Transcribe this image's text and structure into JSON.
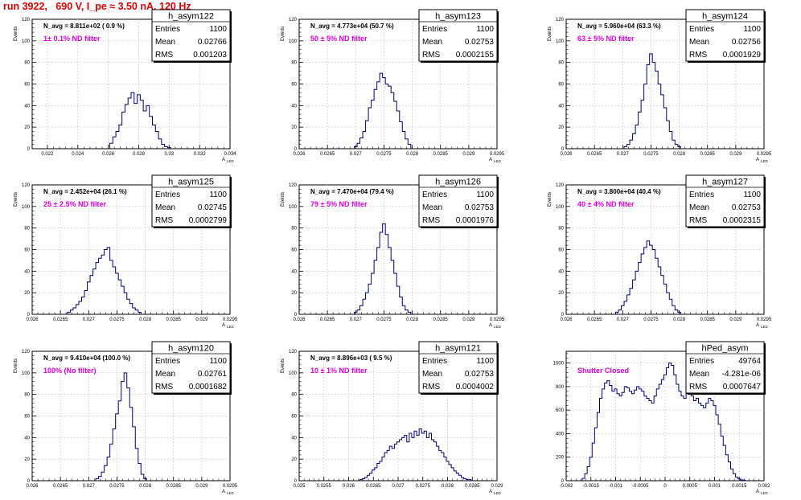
{
  "header": {
    "title": "run 3922,   690 V, I_pe ≈ 3.50 nA, 120 Hz"
  },
  "colors": {
    "title": "#e00000",
    "histogram": "#000080",
    "filter_text": "#e000e0",
    "grid": "#c8c8c8"
  },
  "chart_data": [
    {
      "type": "histogram",
      "name": "h_asym122",
      "stats": {
        "Entries": "1100",
        "Mean": "0.02766",
        "RMS": "0.001203"
      },
      "navg": "N_avg = 8.811e+02  ( 0.9 %)",
      "filter": "1± 0.1% ND filter",
      "ylabel": "Events",
      "xlabel": "A",
      "xlabel_sub": "LED",
      "xlim": [
        0.021,
        0.034
      ],
      "ylim": [
        0,
        120
      ],
      "xticks": [
        0.022,
        0.024,
        0.026,
        0.028,
        0.03,
        0.032,
        0.034
      ],
      "xtick_labels": [
        "0.022",
        "0.024",
        "0.026",
        "0.028",
        "0.03",
        "0.032",
        "0.034"
      ],
      "yticks": [
        0,
        20,
        40,
        60,
        80,
        100,
        120
      ],
      "ytick_labels": [
        "0",
        "20",
        "40",
        "60",
        "80",
        "100",
        "120"
      ],
      "x": [
        0.0262,
        0.0264,
        0.0266,
        0.0268,
        0.027,
        0.0272,
        0.0274,
        0.0276,
        0.0278,
        0.028,
        0.0282,
        0.0284,
        0.0286,
        0.0288,
        0.029,
        0.0292,
        0.0294,
        0.0296,
        0.0298,
        0.03
      ],
      "values": [
        5,
        11,
        16,
        22,
        34,
        41,
        47,
        52,
        42,
        50,
        45,
        35,
        40,
        30,
        22,
        16,
        9,
        4,
        2,
        1
      ]
    },
    {
      "type": "histogram",
      "name": "h_asym123",
      "stats": {
        "Entries": "1100",
        "Mean": "0.02753",
        "RMS": "0.0002155"
      },
      "navg": "N_avg = 4.773e+04 (50.7 %)",
      "filter": "50 ± 5% ND filter",
      "ylabel": "Events",
      "xlabel": "A",
      "xlabel_sub": "LED",
      "xlim": [
        0.026,
        0.0295
      ],
      "ylim": [
        0,
        120
      ],
      "xticks": [
        0.026,
        0.0265,
        0.027,
        0.0275,
        0.028,
        0.0285,
        0.029,
        0.0295
      ],
      "xtick_labels": [
        "0.026",
        "0.0265",
        "0.027",
        "0.0275",
        "0.028",
        "0.0285",
        "0.029",
        "0.0295"
      ],
      "yticks": [
        0,
        20,
        40,
        60,
        80,
        100,
        120
      ],
      "ytick_labels": [
        "0",
        "20",
        "40",
        "60",
        "80",
        "100",
        "120"
      ],
      "x": [
        0.027,
        0.02705,
        0.0271,
        0.02715,
        0.0272,
        0.02725,
        0.0273,
        0.02735,
        0.0274,
        0.02745,
        0.0275,
        0.02755,
        0.0276,
        0.02765,
        0.0277,
        0.02775,
        0.0278,
        0.02785,
        0.0279,
        0.02795
      ],
      "values": [
        2,
        5,
        10,
        16,
        26,
        38,
        45,
        55,
        62,
        70,
        66,
        60,
        58,
        52,
        44,
        35,
        25,
        16,
        9,
        4
      ]
    },
    {
      "type": "histogram",
      "name": "h_asym124",
      "stats": {
        "Entries": "1100",
        "Mean": "0.02756",
        "RMS": "0.0001929"
      },
      "navg": "N_avg = 5.960e+04 (63.3 %)",
      "filter": "63 ± 5% ND filter",
      "ylabel": "Events",
      "xlabel": "A",
      "xlabel_sub": "LED",
      "xlim": [
        0.026,
        0.0295
      ],
      "ylim": [
        0,
        120
      ],
      "xticks": [
        0.026,
        0.0265,
        0.027,
        0.0275,
        0.028,
        0.0285,
        0.029,
        0.0295
      ],
      "xtick_labels": [
        "0.026",
        "0.0265",
        "0.027",
        "0.0275",
        "0.028",
        "0.0285",
        "0.029",
        "0.0295"
      ],
      "yticks": [
        0,
        20,
        40,
        60,
        80,
        100,
        120
      ],
      "ytick_labels": [
        "0",
        "20",
        "40",
        "60",
        "80",
        "100",
        "120"
      ],
      "x": [
        0.02705,
        0.0271,
        0.02715,
        0.0272,
        0.02725,
        0.0273,
        0.02735,
        0.0274,
        0.02745,
        0.0275,
        0.02755,
        0.0276,
        0.02765,
        0.0277,
        0.02775,
        0.0278,
        0.02785,
        0.0279,
        0.02795,
        0.028
      ],
      "values": [
        2,
        4,
        8,
        14,
        22,
        34,
        45,
        60,
        78,
        88,
        80,
        72,
        60,
        50,
        38,
        26,
        16,
        8,
        4,
        2
      ]
    },
    {
      "type": "histogram",
      "name": "h_asym125",
      "stats": {
        "Entries": "1100",
        "Mean": "0.02745",
        "RMS": "0.0002799"
      },
      "navg": "N_avg = 2.452e+04 (26.1 %)",
      "filter": "25 ± 2.5% ND filter",
      "ylabel": "Events",
      "xlabel": "A",
      "xlabel_sub": "LED",
      "xlim": [
        0.026,
        0.0295
      ],
      "ylim": [
        0,
        120
      ],
      "xticks": [
        0.026,
        0.0265,
        0.027,
        0.0275,
        0.028,
        0.0285,
        0.029,
        0.0295
      ],
      "xtick_labels": [
        "0.026",
        "0.0265",
        "0.027",
        "0.0275",
        "0.028",
        "0.0285",
        "0.029",
        "0.0295"
      ],
      "yticks": [
        0,
        20,
        40,
        60,
        80,
        100,
        120
      ],
      "ytick_labels": [
        "0",
        "20",
        "40",
        "60",
        "80",
        "100",
        "120"
      ],
      "x": [
        0.02665,
        0.0267,
        0.02675,
        0.0268,
        0.02685,
        0.0269,
        0.02695,
        0.027,
        0.02705,
        0.0271,
        0.02715,
        0.0272,
        0.02725,
        0.0273,
        0.02735,
        0.0274,
        0.02745,
        0.0275,
        0.02755,
        0.0276,
        0.02765,
        0.0277,
        0.02775,
        0.0278,
        0.02785,
        0.0279
      ],
      "values": [
        2,
        4,
        6,
        9,
        12,
        16,
        22,
        30,
        36,
        42,
        48,
        52,
        55,
        60,
        62,
        50,
        44,
        38,
        32,
        26,
        20,
        14,
        10,
        6,
        4,
        2
      ]
    },
    {
      "type": "histogram",
      "name": "h_asym126",
      "stats": {
        "Entries": "1100",
        "Mean": "0.02753",
        "RMS": "0.0001976"
      },
      "navg": "N_avg = 7.470e+04 (79.4 %)",
      "filter": "79 ± 5% ND filter",
      "ylabel": "Events",
      "xlabel": "A",
      "xlabel_sub": "LED",
      "xlim": [
        0.026,
        0.0295
      ],
      "ylim": [
        0,
        120
      ],
      "xticks": [
        0.026,
        0.0265,
        0.027,
        0.0275,
        0.028,
        0.0285,
        0.029,
        0.0295
      ],
      "xtick_labels": [
        "0.026",
        "0.0265",
        "0.027",
        "0.0275",
        "0.028",
        "0.0285",
        "0.029",
        "0.0295"
      ],
      "yticks": [
        0,
        20,
        40,
        60,
        80,
        100,
        120
      ],
      "ytick_labels": [
        "0",
        "20",
        "40",
        "60",
        "80",
        "100",
        "120"
      ],
      "x": [
        0.027,
        0.02705,
        0.0271,
        0.02715,
        0.0272,
        0.02725,
        0.0273,
        0.02735,
        0.0274,
        0.02745,
        0.0275,
        0.02755,
        0.0276,
        0.02765,
        0.0277,
        0.02775,
        0.0278,
        0.02785,
        0.0279,
        0.02795
      ],
      "values": [
        2,
        4,
        8,
        14,
        20,
        28,
        38,
        50,
        62,
        76,
        84,
        74,
        62,
        50,
        38,
        26,
        16,
        8,
        4,
        2
      ]
    },
    {
      "type": "histogram",
      "name": "h_asym127",
      "stats": {
        "Entries": "1100",
        "Mean": "0.02753",
        "RMS": "0.0002315"
      },
      "navg": "N_avg = 3.800e+04 (40.4 %)",
      "filter": "40 ± 4% ND filter",
      "ylabel": "Events",
      "xlabel": "A",
      "xlabel_sub": "LED",
      "xlim": [
        0.026,
        0.0295
      ],
      "ylim": [
        0,
        120
      ],
      "xticks": [
        0.026,
        0.0265,
        0.027,
        0.0275,
        0.028,
        0.0285,
        0.029,
        0.0295
      ],
      "xtick_labels": [
        "0.026",
        "0.0265",
        "0.027",
        "0.0275",
        "0.028",
        "0.0285",
        "0.029",
        "0.0295"
      ],
      "yticks": [
        0,
        20,
        40,
        60,
        80,
        100,
        120
      ],
      "ytick_labels": [
        "0",
        "20",
        "40",
        "60",
        "80",
        "100",
        "120"
      ],
      "x": [
        0.0269,
        0.02695,
        0.027,
        0.02705,
        0.0271,
        0.02715,
        0.0272,
        0.02725,
        0.0273,
        0.02735,
        0.0274,
        0.02745,
        0.0275,
        0.02755,
        0.0276,
        0.02765,
        0.0277,
        0.02775,
        0.0278,
        0.02785,
        0.0279,
        0.02795,
        0.028
      ],
      "values": [
        2,
        4,
        8,
        12,
        18,
        24,
        32,
        40,
        48,
        56,
        62,
        68,
        64,
        60,
        52,
        44,
        36,
        28,
        20,
        14,
        8,
        4,
        2
      ]
    },
    {
      "type": "histogram",
      "name": "h_asym120",
      "stats": {
        "Entries": "1100",
        "Mean": "0.02761",
        "RMS": "0.0001682"
      },
      "navg": "N_avg = 9.410e+04 (100.0 %)",
      "filter": "100% (No filter)",
      "ylabel": "Events",
      "xlabel": "A",
      "xlabel_sub": "LED",
      "xlim": [
        0.026,
        0.0295
      ],
      "ylim": [
        0,
        120
      ],
      "xticks": [
        0.026,
        0.0265,
        0.027,
        0.0275,
        0.028,
        0.0285,
        0.029,
        0.0295
      ],
      "xtick_labels": [
        "0.026",
        "0.0265",
        "0.027",
        "0.0275",
        "0.028",
        "0.0285",
        "0.029",
        "0.0295"
      ],
      "yticks": [
        0,
        20,
        40,
        60,
        80,
        100,
        120
      ],
      "ytick_labels": [
        "0",
        "20",
        "40",
        "60",
        "80",
        "100",
        "120"
      ],
      "x": [
        0.02715,
        0.0272,
        0.02725,
        0.0273,
        0.02735,
        0.0274,
        0.02745,
        0.0275,
        0.02755,
        0.0276,
        0.02765,
        0.0277,
        0.02775,
        0.0278,
        0.02785,
        0.0279,
        0.02795,
        0.028
      ],
      "values": [
        2,
        4,
        8,
        14,
        22,
        34,
        48,
        62,
        74,
        92,
        100,
        86,
        68,
        50,
        30,
        16,
        6,
        2
      ]
    },
    {
      "type": "histogram",
      "name": "h_asym121",
      "stats": {
        "Entries": "1100",
        "Mean": "0.02753",
        "RMS": "0.0004002"
      },
      "navg": "N_avg = 8.896e+03 ( 9.5 %)",
      "filter": "10 ± 1% ND filter",
      "ylabel": "Events",
      "xlabel": "A",
      "xlabel_sub": "LED",
      "xlim": [
        0.025,
        0.029
      ],
      "ylim": [
        0,
        120
      ],
      "xticks": [
        0.025,
        0.0255,
        0.026,
        0.0265,
        0.027,
        0.0275,
        0.028,
        0.0285,
        0.029
      ],
      "xtick_labels": [
        "0.025",
        "0.0255",
        "0.026",
        "0.0265",
        "0.027",
        "0.0275",
        "0.028",
        "0.0285",
        "0.029"
      ],
      "yticks": [
        0,
        20,
        40,
        60,
        80,
        100,
        120
      ],
      "ytick_labels": [
        "0",
        "20",
        "40",
        "60",
        "80",
        "100",
        "120"
      ],
      "x": [
        0.02625,
        0.0263,
        0.02635,
        0.0264,
        0.02645,
        0.0265,
        0.02655,
        0.0266,
        0.02665,
        0.0267,
        0.02675,
        0.0268,
        0.02685,
        0.0269,
        0.02695,
        0.027,
        0.02705,
        0.0271,
        0.02715,
        0.0272,
        0.02725,
        0.0273,
        0.02735,
        0.0274,
        0.02745,
        0.0275,
        0.02755,
        0.0276,
        0.02765,
        0.0277,
        0.02775,
        0.0278,
        0.02785,
        0.0279,
        0.02795,
        0.028,
        0.02805,
        0.0281,
        0.02815,
        0.0282,
        0.02825,
        0.0283,
        0.02835,
        0.0284,
        0.02845
      ],
      "values": [
        1,
        2,
        3,
        5,
        7,
        10,
        12,
        16,
        18,
        22,
        26,
        28,
        32,
        30,
        34,
        36,
        38,
        40,
        42,
        36,
        44,
        40,
        46,
        42,
        48,
        44,
        46,
        40,
        44,
        38,
        36,
        32,
        28,
        26,
        22,
        18,
        15,
        12,
        9,
        7,
        5,
        3,
        2,
        1,
        1
      ]
    },
    {
      "type": "histogram",
      "name": "hPed_asym",
      "stats": {
        "Entries": "49764",
        "Mean": "-4.281e-06",
        "RMS": "0.0007647"
      },
      "navg": "",
      "filter": "Shutter Closed",
      "ylabel": "",
      "xlabel": "A",
      "xlabel_sub": "LED",
      "xlim": [
        -0.002,
        0.002
      ],
      "ylim": [
        0,
        1100
      ],
      "xticks": [
        -0.002,
        -0.0015,
        -0.001,
        -0.0005,
        0,
        0.0005,
        0.001,
        0.0015,
        0.002
      ],
      "xtick_labels": [
        "-0.002",
        "-0.0015",
        "-0.001",
        "-0.0005",
        "0",
        "0.0005",
        "0.001",
        "0.0015",
        "0.002"
      ],
      "yticks": [
        0,
        200,
        400,
        600,
        800,
        1000
      ],
      "ytick_labels": [
        "0",
        "200",
        "400",
        "600",
        "800",
        "1000"
      ],
      "x": [
        -0.00165,
        -0.0016,
        -0.00155,
        -0.0015,
        -0.00145,
        -0.0014,
        -0.00135,
        -0.0013,
        -0.00125,
        -0.0012,
        -0.00115,
        -0.0011,
        -0.00105,
        -0.001,
        -0.00095,
        -0.0009,
        -0.00085,
        -0.0008,
        -0.00075,
        -0.0007,
        -0.00065,
        -0.0006,
        -0.00055,
        -0.0005,
        -0.00045,
        -0.0004,
        -0.00035,
        -0.0003,
        -0.00025,
        -0.0002,
        -0.00015,
        -0.0001,
        -5e-05,
        0.0,
        5e-05,
        0.0001,
        0.00015,
        0.0002,
        0.00025,
        0.0003,
        0.00035,
        0.0004,
        0.00045,
        0.0005,
        0.00055,
        0.0006,
        0.00065,
        0.0007,
        0.00075,
        0.0008,
        0.00085,
        0.0009,
        0.00095,
        0.001,
        0.00105,
        0.0011,
        0.00115,
        0.0012,
        0.00125,
        0.0013,
        0.00135,
        0.0014,
        0.00145,
        0.0015,
        0.00155,
        0.0016
      ],
      "values": [
        20,
        60,
        120,
        200,
        320,
        450,
        580,
        700,
        780,
        830,
        850,
        810,
        760,
        780,
        740,
        720,
        750,
        800,
        790,
        760,
        740,
        770,
        800,
        780,
        760,
        720,
        700,
        680,
        660,
        720,
        780,
        820,
        860,
        900,
        960,
        1000,
        980,
        900,
        820,
        760,
        720,
        700,
        740,
        780,
        720,
        680,
        700,
        660,
        640,
        620,
        660,
        700,
        680,
        640,
        560,
        480,
        380,
        300,
        220,
        160,
        100,
        60,
        30,
        15,
        8,
        4
      ]
    }
  ]
}
